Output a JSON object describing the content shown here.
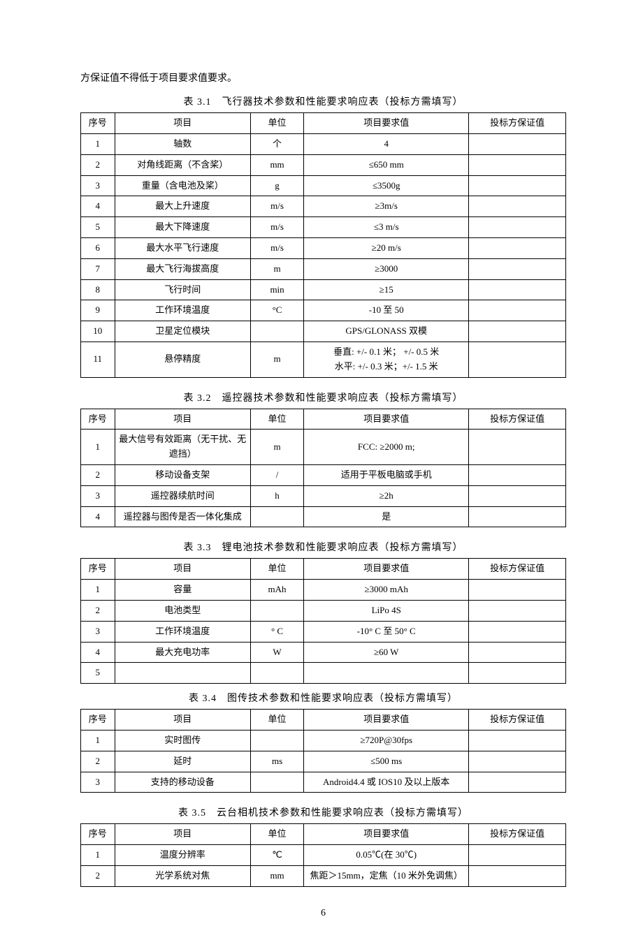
{
  "intro_text": "方保证值不得低于项目要求值要求。",
  "page_number": "6",
  "headers": {
    "seq": "序号",
    "item": "项目",
    "unit": "单位",
    "req": "项目要求值",
    "bid": "投标方保证值"
  },
  "tables": {
    "t1": {
      "caption": "表 3.1　飞行器技术参数和性能要求响应表（投标方需填写）",
      "rows": [
        {
          "seq": "1",
          "item": "轴数",
          "unit": "个",
          "req": "4",
          "bid": ""
        },
        {
          "seq": "2",
          "item": "对角线距离（不含桨）",
          "unit": "mm",
          "req": "≤650 mm",
          "bid": ""
        },
        {
          "seq": "3",
          "item": "重量（含电池及桨）",
          "unit": "g",
          "req": "≤3500g",
          "bid": ""
        },
        {
          "seq": "4",
          "item": "最大上升速度",
          "unit": "m/s",
          "req": "≥3m/s",
          "bid": ""
        },
        {
          "seq": "5",
          "item": "最大下降速度",
          "unit": "m/s",
          "req": "≤3 m/s",
          "bid": ""
        },
        {
          "seq": "6",
          "item": "最大水平飞行速度",
          "unit": "m/s",
          "req": "≥20 m/s",
          "bid": ""
        },
        {
          "seq": "7",
          "item": "最大飞行海拔高度",
          "unit": "m",
          "req": "≥3000",
          "bid": ""
        },
        {
          "seq": "8",
          "item": "飞行时间",
          "unit": "min",
          "req": "≥15",
          "bid": ""
        },
        {
          "seq": "9",
          "item": "工作环境温度",
          "unit": "°C",
          "req": "-10 至 50",
          "bid": ""
        },
        {
          "seq": "10",
          "item": "卫星定位模块",
          "unit": "",
          "req": "GPS/GLONASS 双模",
          "bid": ""
        },
        {
          "seq": "11",
          "item": "悬停精度",
          "unit": "m",
          "req": "垂直: +/- 0.1 米； +/- 0.5 米\n水平: +/- 0.3 米；+/- 1.5 米",
          "bid": ""
        }
      ]
    },
    "t2": {
      "caption": "表 3.2　遥控器技术参数和性能要求响应表（投标方需填写）",
      "rows": [
        {
          "seq": "1",
          "item": "最大信号有效距离（无干扰、无遮挡）",
          "unit": "m",
          "req": "FCC:  ≥2000 m;",
          "bid": ""
        },
        {
          "seq": "2",
          "item": "移动设备支架",
          "unit": "/",
          "req": "适用于平板电脑或手机",
          "bid": ""
        },
        {
          "seq": "3",
          "item": "遥控器续航时间",
          "unit": "h",
          "req": "≥2h",
          "bid": ""
        },
        {
          "seq": "4",
          "item": "遥控器与图传是否一体化集成",
          "unit": "",
          "req": "是",
          "bid": ""
        }
      ]
    },
    "t3": {
      "caption": "表 3.3　锂电池技术参数和性能要求响应表（投标方需填写）",
      "rows": [
        {
          "seq": "1",
          "item": "容量",
          "unit": "mAh",
          "req": "≥3000 mAh",
          "bid": ""
        },
        {
          "seq": "2",
          "item": "电池类型",
          "unit": "",
          "req": "LiPo 4S",
          "bid": ""
        },
        {
          "seq": "3",
          "item": "工作环境温度",
          "unit": "° C",
          "req": "-10° C 至 50° C",
          "bid": ""
        },
        {
          "seq": "4",
          "item": "最大充电功率",
          "unit": "W",
          "req": "≥60 W",
          "bid": ""
        },
        {
          "seq": "5",
          "item": "",
          "unit": "",
          "req": "",
          "bid": ""
        }
      ]
    },
    "t4": {
      "caption": "表 3.4　图传技术参数和性能要求响应表（投标方需填写）",
      "rows": [
        {
          "seq": "1",
          "item": "实时图传",
          "unit": "",
          "req": "≥720P@30fps",
          "bid": ""
        },
        {
          "seq": "2",
          "item": "延时",
          "unit": "ms",
          "req": "≤500 ms",
          "bid": ""
        },
        {
          "seq": "3",
          "item": "支持的移动设备",
          "unit": "",
          "req": "Android4.4 或 IOS10 及以上版本",
          "bid": ""
        }
      ]
    },
    "t5": {
      "caption": "表 3.5　云台相机技术参数和性能要求响应表（投标方需填写）",
      "rows": [
        {
          "seq": "1",
          "item": "温度分辨率",
          "unit": "℃",
          "req": "0.05℃(在 30℃)",
          "bid": ""
        },
        {
          "seq": "2",
          "item": "光学系统对焦",
          "unit": "mm",
          "req": "焦距＞15mm，定焦（10 米外免调焦）",
          "bid": ""
        }
      ]
    }
  }
}
